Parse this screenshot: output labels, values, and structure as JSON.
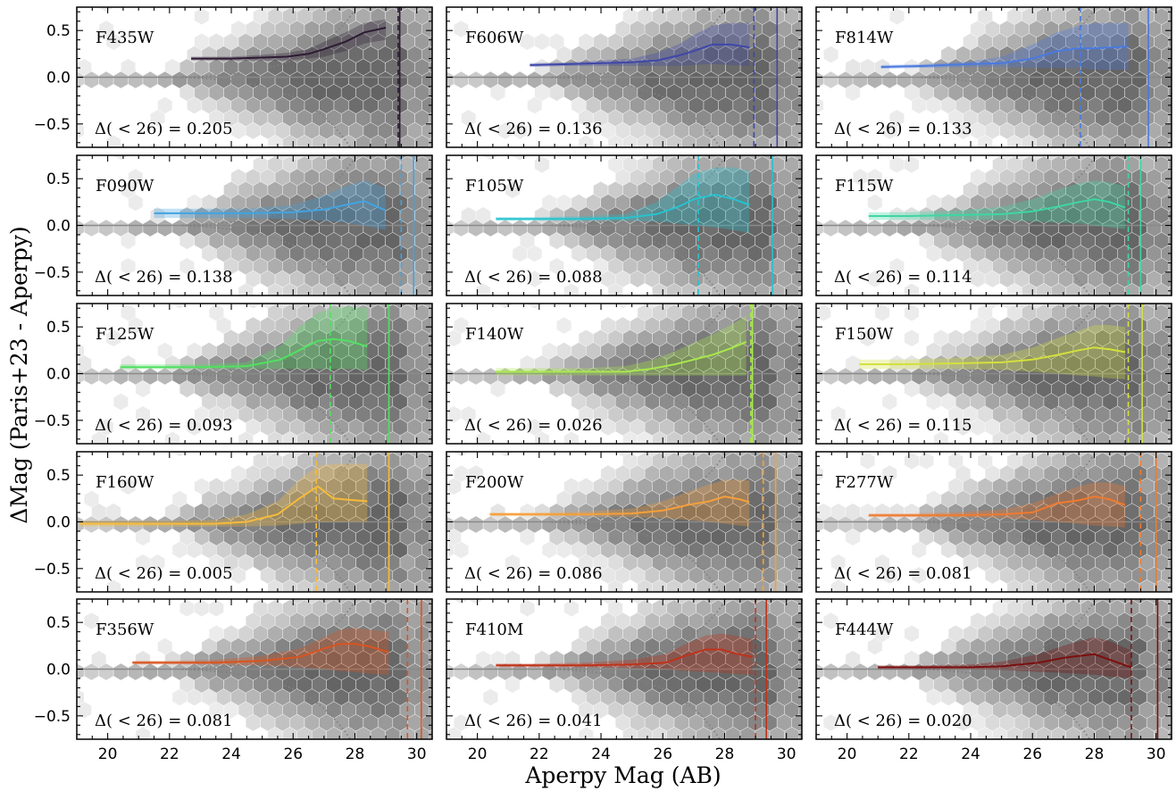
{
  "figure": {
    "xlabel": "Aperpy Mag (AB)",
    "ylabel": "ΔMag (Paris+23 - Aperpy)"
  },
  "chart_data": {
    "type": "line",
    "layout": "5x3 grid, shared x and y axes",
    "xlabel": "Aperpy Mag (AB)",
    "ylabel": "ΔMag (Paris+23 - Aperpy)",
    "xlim": [
      19,
      30.5
    ],
    "ylim": [
      -0.75,
      0.75
    ],
    "xticks": [
      "20",
      "22",
      "24",
      "26",
      "28",
      "30"
    ],
    "yticks": [
      "0.5",
      "0.0",
      "−0.5"
    ],
    "background": "grayscale hexbin density of individual sources; dotted gray curves show expected error envelope; horizontal gray line at 0",
    "reference_line_y": 0.0,
    "panels": [
      {
        "filter": "F435W",
        "stat_text": "Δ( < 26) = 0.205",
        "color": "#2d1b33",
        "x": [
          22.7,
          24.0,
          25.0,
          25.8,
          26.5,
          27.0,
          27.7,
          28.3,
          29.0
        ],
        "y": [
          0.2,
          0.2,
          0.21,
          0.22,
          0.25,
          0.3,
          0.38,
          0.48,
          0.53
        ],
        "band_lo": [
          0.18,
          0.18,
          0.18,
          0.18,
          0.2,
          0.22,
          0.28,
          0.36,
          0.4
        ],
        "band_hi": [
          0.22,
          0.22,
          0.24,
          0.26,
          0.3,
          0.38,
          0.48,
          0.58,
          0.62
        ],
        "depth_dashed": 29.4,
        "depth_solid": 29.45
      },
      {
        "filter": "F606W",
        "stat_text": "Δ( < 26) = 0.136",
        "color": "#3f47a8",
        "x": [
          21.7,
          23.0,
          24.0,
          25.0,
          25.8,
          26.5,
          27.0,
          27.6,
          28.2,
          28.8
        ],
        "y": [
          0.13,
          0.14,
          0.15,
          0.16,
          0.18,
          0.23,
          0.28,
          0.35,
          0.35,
          0.32
        ],
        "band_lo": [
          0.11,
          0.12,
          0.12,
          0.12,
          0.12,
          0.12,
          0.13,
          0.14,
          0.13,
          0.12
        ],
        "band_hi": [
          0.15,
          0.16,
          0.18,
          0.2,
          0.26,
          0.35,
          0.45,
          0.55,
          0.58,
          0.58
        ],
        "depth_dashed": 28.95,
        "depth_solid": 29.7
      },
      {
        "filter": "F814W",
        "stat_text": "Δ( < 26) = 0.133",
        "color": "#4a7ae0",
        "x": [
          21.1,
          22.5,
          24.0,
          25.0,
          26.0,
          26.8,
          27.5,
          28.0,
          28.6,
          29.1
        ],
        "y": [
          0.11,
          0.12,
          0.14,
          0.15,
          0.2,
          0.28,
          0.31,
          0.31,
          0.32,
          0.33
        ],
        "band_lo": [
          0.09,
          0.1,
          0.11,
          0.11,
          0.1,
          0.1,
          0.1,
          0.08,
          0.08,
          0.08
        ],
        "band_hi": [
          0.13,
          0.14,
          0.17,
          0.22,
          0.35,
          0.48,
          0.55,
          0.58,
          0.58,
          0.58
        ],
        "depth_dashed": 27.55,
        "depth_solid": 29.75
      },
      {
        "filter": "F090W",
        "stat_text": "Δ( < 26) = 0.138",
        "color": "#43a3e0",
        "x": [
          21.5,
          23.0,
          24.5,
          26.0,
          27.0,
          27.7,
          28.3,
          29.0
        ],
        "y": [
          0.13,
          0.13,
          0.13,
          0.14,
          0.17,
          0.22,
          0.26,
          0.16
        ],
        "band_lo": [
          0.08,
          0.08,
          0.08,
          0.07,
          0.05,
          0.03,
          0.0,
          -0.05
        ],
        "band_hi": [
          0.18,
          0.18,
          0.18,
          0.22,
          0.32,
          0.42,
          0.48,
          0.4
        ],
        "depth_dashed": 29.5,
        "depth_solid": 29.9
      },
      {
        "filter": "F105W",
        "stat_text": "Δ( < 26) = 0.088",
        "color": "#26c3cf",
        "x": [
          20.6,
          22.0,
          23.5,
          24.8,
          25.8,
          26.5,
          27.0,
          27.7,
          28.3,
          28.8
        ],
        "y": [
          0.07,
          0.07,
          0.07,
          0.08,
          0.12,
          0.2,
          0.28,
          0.33,
          0.28,
          0.22
        ],
        "band_lo": [
          0.05,
          0.05,
          0.05,
          0.05,
          0.04,
          0.02,
          0.0,
          -0.02,
          -0.05,
          -0.08
        ],
        "band_hi": [
          0.09,
          0.09,
          0.1,
          0.12,
          0.25,
          0.42,
          0.55,
          0.62,
          0.62,
          0.58
        ],
        "depth_dashed": 27.15,
        "depth_solid": 29.55
      },
      {
        "filter": "F115W",
        "stat_text": "Δ( < 26) = 0.114",
        "color": "#3ed6a4",
        "x": [
          20.7,
          22.0,
          23.5,
          25.0,
          26.0,
          26.8,
          27.5,
          28.0,
          28.5,
          29.0
        ],
        "y": [
          0.1,
          0.1,
          0.11,
          0.12,
          0.15,
          0.2,
          0.25,
          0.28,
          0.25,
          0.19
        ],
        "band_lo": [
          0.06,
          0.06,
          0.06,
          0.06,
          0.04,
          0.03,
          0.02,
          0.0,
          -0.02,
          -0.04
        ],
        "band_hi": [
          0.14,
          0.14,
          0.16,
          0.2,
          0.28,
          0.38,
          0.45,
          0.48,
          0.46,
          0.42
        ],
        "depth_dashed": 29.1,
        "depth_solid": 29.5
      },
      {
        "filter": "F125W",
        "stat_text": "Δ( < 26) = 0.093",
        "color": "#52e061",
        "x": [
          20.4,
          21.5,
          23.0,
          24.5,
          25.6,
          26.2,
          26.8,
          27.3,
          27.8,
          28.4
        ],
        "y": [
          0.07,
          0.07,
          0.07,
          0.08,
          0.15,
          0.25,
          0.35,
          0.37,
          0.35,
          0.29
        ],
        "band_lo": [
          0.05,
          0.05,
          0.05,
          0.05,
          0.05,
          0.05,
          0.05,
          0.05,
          0.05,
          0.04
        ],
        "band_hi": [
          0.1,
          0.1,
          0.1,
          0.12,
          0.3,
          0.5,
          0.65,
          0.7,
          0.72,
          0.7
        ],
        "depth_dashed": 27.2,
        "depth_solid": 29.1
      },
      {
        "filter": "F140W",
        "stat_text": "Δ( < 26) = 0.026",
        "color": "#a9e94c",
        "x": [
          20.6,
          22.0,
          23.5,
          24.8,
          25.6,
          26.4,
          27.0,
          27.6,
          28.2,
          28.7
        ],
        "y": [
          0.02,
          0.02,
          0.02,
          0.02,
          0.05,
          0.1,
          0.15,
          0.2,
          0.27,
          0.34
        ],
        "band_lo": [
          -0.02,
          -0.02,
          -0.02,
          -0.02,
          -0.02,
          -0.02,
          -0.02,
          -0.02,
          -0.02,
          -0.02
        ],
        "band_hi": [
          0.06,
          0.06,
          0.06,
          0.08,
          0.14,
          0.24,
          0.33,
          0.42,
          0.52,
          0.62
        ],
        "depth_dashed": 28.85,
        "depth_solid": 28.9
      },
      {
        "filter": "F150W",
        "stat_text": "Δ( < 26) = 0.115",
        "color": "#d4e03e",
        "x": [
          20.4,
          22.0,
          23.5,
          25.0,
          26.0,
          26.8,
          27.5,
          28.0,
          28.5,
          29.0
        ],
        "y": [
          0.1,
          0.1,
          0.11,
          0.12,
          0.15,
          0.2,
          0.25,
          0.28,
          0.26,
          0.23
        ],
        "band_lo": [
          0.05,
          0.05,
          0.05,
          0.04,
          0.02,
          0.0,
          -0.02,
          -0.03,
          -0.05,
          -0.06
        ],
        "band_hi": [
          0.15,
          0.15,
          0.17,
          0.2,
          0.28,
          0.38,
          0.46,
          0.52,
          0.52,
          0.5
        ],
        "depth_dashed": 29.1,
        "depth_solid": 29.55
      },
      {
        "filter": "F160W",
        "stat_text": "Δ( < 26) = 0.005",
        "color": "#f5bb3a",
        "x": [
          19.1,
          20.5,
          22.0,
          23.5,
          24.5,
          25.5,
          26.2,
          26.8,
          27.3,
          28.4
        ],
        "y": [
          -0.02,
          -0.02,
          -0.02,
          -0.02,
          0.0,
          0.08,
          0.25,
          0.38,
          0.25,
          0.22
        ],
        "band_lo": [
          -0.05,
          -0.05,
          -0.05,
          -0.05,
          -0.05,
          -0.04,
          -0.02,
          0.0,
          0.0,
          0.0
        ],
        "band_hi": [
          0.01,
          0.01,
          0.01,
          0.02,
          0.08,
          0.22,
          0.45,
          0.6,
          0.62,
          0.62
        ],
        "depth_dashed": 26.75,
        "depth_solid": 29.1
      },
      {
        "filter": "F200W",
        "stat_text": "Δ( < 26) = 0.086",
        "color": "#f5a03a",
        "x": [
          20.4,
          22.0,
          23.5,
          25.0,
          26.0,
          26.8,
          27.5,
          28.0,
          28.5,
          28.8
        ],
        "y": [
          0.08,
          0.08,
          0.08,
          0.09,
          0.12,
          0.18,
          0.22,
          0.27,
          0.24,
          0.21
        ],
        "band_lo": [
          0.06,
          0.06,
          0.06,
          0.05,
          0.04,
          0.02,
          0.0,
          -0.02,
          -0.04,
          -0.05
        ],
        "band_hi": [
          0.1,
          0.1,
          0.11,
          0.14,
          0.22,
          0.32,
          0.4,
          0.45,
          0.45,
          0.44
        ],
        "depth_dashed": 29.25,
        "depth_solid": 29.65
      },
      {
        "filter": "F277W",
        "stat_text": "Δ( < 26) = 0.081",
        "color": "#f07a2e",
        "x": [
          20.7,
          22.0,
          23.5,
          25.0,
          26.0,
          26.8,
          27.5,
          28.0,
          28.5,
          29.0
        ],
        "y": [
          0.07,
          0.07,
          0.07,
          0.08,
          0.1,
          0.2,
          0.23,
          0.27,
          0.24,
          0.18
        ],
        "band_lo": [
          0.05,
          0.05,
          0.05,
          0.04,
          0.02,
          0.0,
          -0.02,
          -0.04,
          -0.05,
          -0.06
        ],
        "band_hi": [
          0.09,
          0.09,
          0.1,
          0.13,
          0.2,
          0.3,
          0.38,
          0.42,
          0.42,
          0.38
        ],
        "depth_dashed": 29.5,
        "depth_solid": 30.0
      },
      {
        "filter": "F356W",
        "stat_text": "Δ( < 26) = 0.081",
        "color": "#d9541f",
        "x": [
          20.8,
          22.0,
          23.5,
          25.0,
          26.2,
          27.0,
          27.5,
          28.0,
          28.5,
          29.1
        ],
        "y": [
          0.07,
          0.07,
          0.07,
          0.09,
          0.13,
          0.22,
          0.27,
          0.27,
          0.24,
          0.18
        ],
        "band_lo": [
          0.05,
          0.05,
          0.05,
          0.04,
          0.02,
          0.0,
          -0.02,
          -0.03,
          -0.05,
          -0.06
        ],
        "band_hi": [
          0.09,
          0.09,
          0.1,
          0.14,
          0.22,
          0.34,
          0.42,
          0.44,
          0.42,
          0.4
        ],
        "depth_dashed": 29.7,
        "depth_solid": 30.15
      },
      {
        "filter": "F410M",
        "stat_text": "Δ( < 26) = 0.041",
        "color": "#c0321a",
        "x": [
          20.6,
          22.0,
          23.5,
          25.0,
          26.1,
          26.8,
          27.4,
          27.9,
          28.3,
          28.9
        ],
        "y": [
          0.04,
          0.04,
          0.04,
          0.05,
          0.07,
          0.15,
          0.21,
          0.21,
          0.17,
          0.13
        ],
        "band_lo": [
          0.02,
          0.02,
          0.02,
          0.01,
          0.0,
          -0.02,
          -0.03,
          -0.04,
          -0.05,
          -0.06
        ],
        "band_hi": [
          0.06,
          0.06,
          0.07,
          0.1,
          0.16,
          0.28,
          0.36,
          0.38,
          0.36,
          0.32
        ],
        "depth_dashed": 29.0,
        "depth_solid": 29.35
      },
      {
        "filter": "F444W",
        "stat_text": "Δ( < 26) = 0.020",
        "color": "#7a1010",
        "x": [
          21.0,
          22.5,
          24.0,
          25.0,
          26.2,
          27.0,
          27.5,
          28.0,
          28.5,
          29.2
        ],
        "y": [
          0.02,
          0.02,
          0.02,
          0.03,
          0.07,
          0.12,
          0.14,
          0.16,
          0.1,
          0.02
        ],
        "band_lo": [
          0.0,
          0.0,
          0.0,
          -0.01,
          -0.03,
          -0.04,
          -0.05,
          -0.06,
          -0.08,
          -0.1
        ],
        "band_hi": [
          0.04,
          0.04,
          0.05,
          0.08,
          0.16,
          0.25,
          0.3,
          0.34,
          0.3,
          0.2
        ],
        "depth_dashed": 29.2,
        "depth_solid": 30.05
      }
    ]
  }
}
